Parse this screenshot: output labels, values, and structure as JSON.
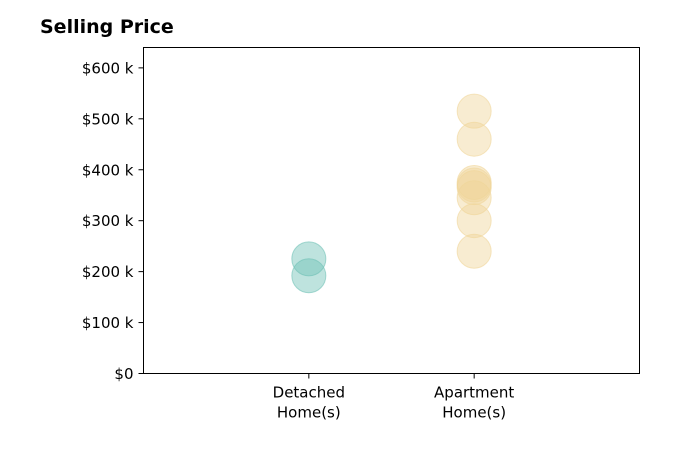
{
  "chart_data": {
    "type": "scatter",
    "title": "Selling Price",
    "xlabel": "",
    "ylabel": "",
    "categories": [
      "Detached\nHome(s)",
      "Apartment\nHome(s)"
    ],
    "ylim": [
      0,
      640000
    ],
    "xlim": [
      -1,
      2
    ],
    "y_ticks": [
      0,
      100000,
      200000,
      300000,
      400000,
      500000,
      600000
    ],
    "y_tick_labels": [
      "$0",
      "$100 k",
      "$200 k",
      "$300 k",
      "$400 k",
      "$500 k",
      "$600 k"
    ],
    "grid": false,
    "series": [
      {
        "category": "Detached\nHome(s)",
        "color": "#6fc2b5",
        "values": [
          225000,
          192000
        ]
      },
      {
        "category": "Apartment\nHome(s)",
        "color": "#f0d59a",
        "values": [
          515000,
          460000,
          375000,
          370000,
          365000,
          345000,
          300000,
          240000
        ]
      }
    ]
  }
}
